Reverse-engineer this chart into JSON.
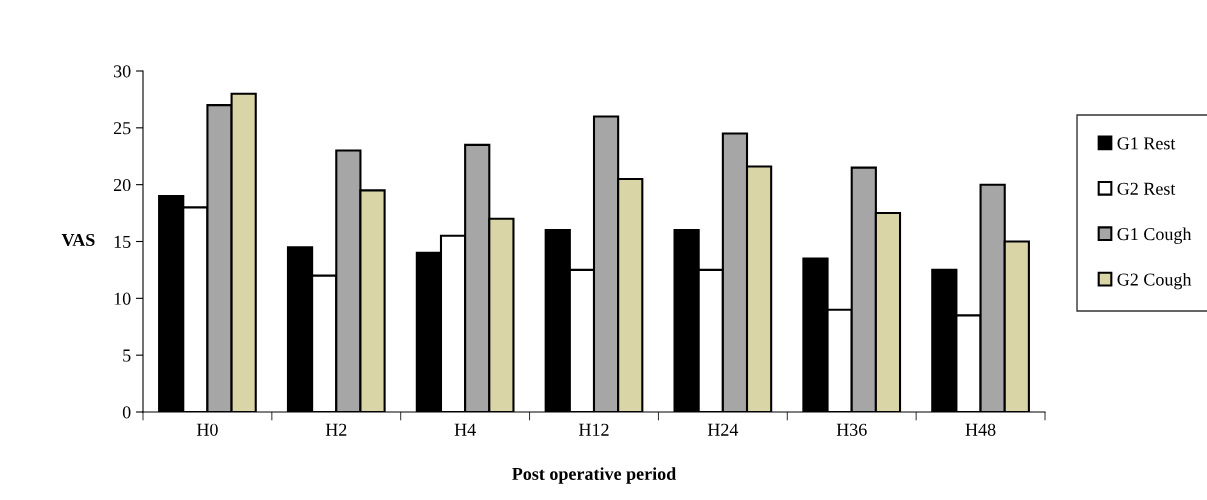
{
  "chart_data": {
    "type": "bar",
    "xlabel": "Post operative period",
    "ylabel": "VAS",
    "categories": [
      "H0",
      "H2",
      "H4",
      "H12",
      "H24",
      "H36",
      "H48"
    ],
    "series": [
      {
        "name": "G1 Rest",
        "color": "#000000",
        "values": [
          19,
          14.5,
          14,
          16,
          16,
          13.5,
          12.5
        ]
      },
      {
        "name": "G2 Rest",
        "color": "#ffffff",
        "values": [
          18,
          12,
          15.5,
          12.5,
          12.5,
          9,
          8.5
        ]
      },
      {
        "name": "G1 Cough",
        "color": "#a6a6a6",
        "values": [
          27,
          23,
          23.5,
          26,
          24.5,
          21.5,
          20
        ]
      },
      {
        "name": "G2 Cough",
        "color": "#d9d5a7",
        "values": [
          28,
          19.5,
          17,
          20.5,
          21.6,
          17.5,
          15
        ]
      }
    ],
    "ylim": [
      0,
      30
    ],
    "yticks": [
      0,
      5,
      10,
      15,
      20,
      25,
      30
    ],
    "grid": false,
    "legend": "right"
  }
}
